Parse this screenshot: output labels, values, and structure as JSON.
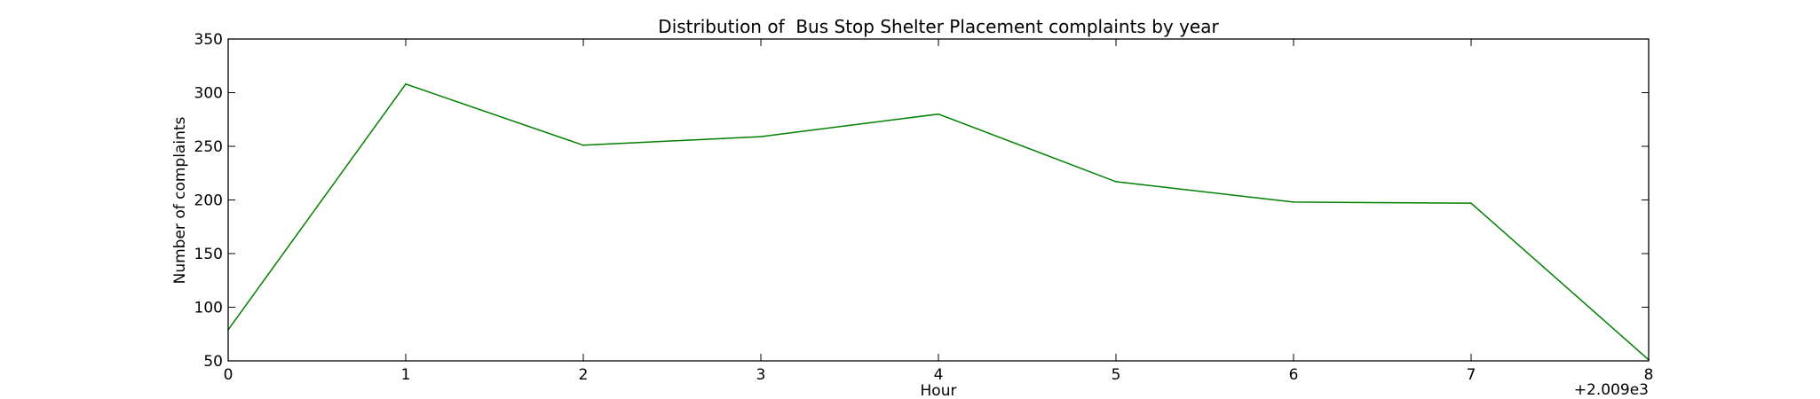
{
  "chart_data": {
    "type": "line",
    "title": "Distribution of  Bus Stop Shelter Placement complaints by year",
    "xlabel": "Hour",
    "ylabel": "Number of complaints",
    "x_offset_label": "+2.009e3",
    "x": [
      0,
      1,
      2,
      3,
      4,
      5,
      6,
      7,
      8
    ],
    "xlim": [
      0,
      8
    ],
    "ylim": [
      50,
      350
    ],
    "x_ticks": [
      0,
      1,
      2,
      3,
      4,
      5,
      6,
      7,
      8
    ],
    "y_ticks": [
      50,
      100,
      150,
      200,
      250,
      300,
      350
    ],
    "grid": false,
    "legend": "none",
    "series": [
      {
        "color": "#008000",
        "values": [
          79,
          308,
          251,
          259,
          280,
          217,
          198,
          197,
          51
        ]
      }
    ]
  }
}
